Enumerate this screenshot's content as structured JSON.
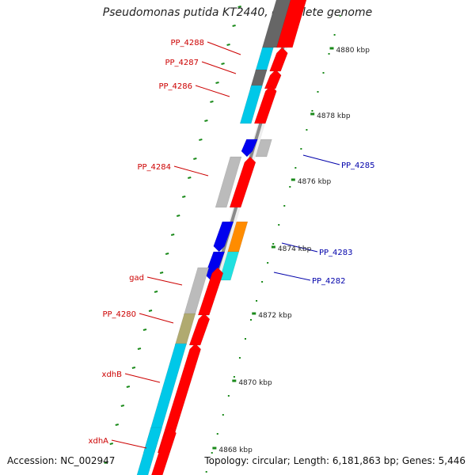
{
  "title": "Pseudomonas putida KT2440, complete genome",
  "footer": {
    "accession": "Accession: NC_002947",
    "summary": "Topology: circular; Length: 6,181,863 bp; Genes: 5,446"
  },
  "colors": {
    "backbone": "#8a8a8a",
    "cds": "#ff0000",
    "cog_cyan": "#00c8e8",
    "cog_lightcyan": "#20e0e0",
    "cog_gray": "#bbbbbb",
    "cog_darkgray": "#666666",
    "cog_olive": "#b0aa70",
    "cog_orange": "#ff8c00",
    "reverse_cds": "#0000ee",
    "ticks": "#1a8a1a",
    "label_forward": "#cc0000",
    "label_reverse": "#0000aa"
  },
  "ruler": [
    {
      "label": "4880 kbp"
    },
    {
      "label": "4878 kbp"
    },
    {
      "label": "4876 kbp"
    },
    {
      "label": "4874 kbp"
    },
    {
      "label": "4872 kbp"
    },
    {
      "label": "4870 kbp"
    },
    {
      "label": "4868 kbp"
    }
  ],
  "genes": [
    {
      "name": "PP_4288",
      "strand": "+",
      "cog": "cog_cyan"
    },
    {
      "name": "PP_4287",
      "strand": "+",
      "cog": "cog_darkgray"
    },
    {
      "name": "PP_4286",
      "strand": "+",
      "cog": "cog_cyan"
    },
    {
      "name": "PP_4285",
      "strand": "-",
      "cog": "cog_gray"
    },
    {
      "name": "PP_4284",
      "strand": "+",
      "cog": "cog_gray"
    },
    {
      "name": "PP_4283",
      "strand": "-",
      "cog": "cog_orange"
    },
    {
      "name": "PP_4282",
      "strand": "-",
      "cog": "cog_lightcyan"
    },
    {
      "name": "gad",
      "strand": "+",
      "cog": "cog_gray"
    },
    {
      "name": "PP_4280",
      "strand": "+",
      "cog": "cog_olive"
    },
    {
      "name": "xdhB",
      "strand": "+",
      "cog": "cog_cyan"
    },
    {
      "name": "xdhA",
      "strand": "+",
      "cog": "cog_cyan"
    }
  ]
}
